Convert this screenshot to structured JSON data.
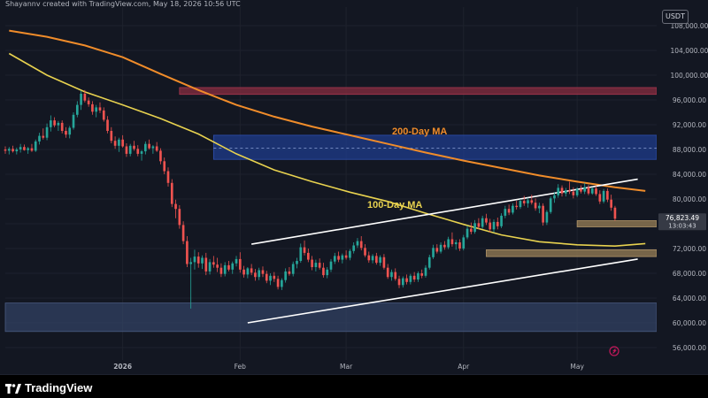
{
  "header": {
    "created_text": "Shayannv created with TradingView.com, May 18, 2026 10:56 UTC"
  },
  "currency_badge": "USDT",
  "brand": {
    "name": "TradingView"
  },
  "colors": {
    "background": "#131722",
    "up_candle": "#26a69a",
    "down_candle": "#ef5350",
    "ma200": "#f08c2a",
    "ma100": "#e8d24f",
    "channel": "#ffffff",
    "resistance_zone": "#7a2a3c",
    "blue_zone": "#1f3c8c",
    "support_zone_bottom": "#334466",
    "demand_zone": "#8a7350"
  },
  "chart_data": {
    "type": "candlestick",
    "yaxis": {
      "range": [
        54000,
        111000
      ],
      "ticks": [
        "108,000.00",
        "104,000.00",
        "100,000.00",
        "96,000.00",
        "92,000.00",
        "88,000.00",
        "84,000.00",
        "80,000.00",
        "76,000.00",
        "72,000.00",
        "68,000.00",
        "64,000.00",
        "60,000.00",
        "56,000.00"
      ],
      "tick_values": [
        108000,
        104000,
        100000,
        96000,
        92000,
        88000,
        84000,
        80000,
        76000,
        72000,
        68000,
        64000,
        60000,
        56000
      ]
    },
    "xaxis": {
      "labels": [
        "2026",
        "Feb",
        "Mar",
        "Apr",
        "May"
      ],
      "label_days": [
        0,
        31,
        59,
        90,
        120
      ]
    },
    "last_price": "76,823.49",
    "countdown": "13:03:43",
    "ma_labels": {
      "ma200": "200-Day MA",
      "ma100": "100-Day MA"
    },
    "ma200": {
      "points": [
        [
          -30,
          107200
        ],
        [
          -20,
          106200
        ],
        [
          -10,
          104800
        ],
        [
          0,
          102900
        ],
        [
          10,
          100200
        ],
        [
          20,
          97600
        ],
        [
          30,
          95200
        ],
        [
          40,
          93300
        ],
        [
          50,
          91700
        ],
        [
          60,
          90300
        ],
        [
          70,
          88900
        ],
        [
          80,
          87500
        ],
        [
          90,
          86200
        ],
        [
          100,
          85000
        ],
        [
          110,
          83800
        ],
        [
          120,
          82800
        ],
        [
          130,
          81900
        ],
        [
          138,
          81300
        ]
      ]
    },
    "ma100": {
      "points": [
        [
          -30,
          103500
        ],
        [
          -20,
          100000
        ],
        [
          -10,
          97300
        ],
        [
          0,
          95200
        ],
        [
          10,
          93000
        ],
        [
          20,
          90500
        ],
        [
          30,
          87300
        ],
        [
          40,
          84700
        ],
        [
          50,
          82800
        ],
        [
          60,
          81100
        ],
        [
          70,
          79600
        ],
        [
          80,
          77700
        ],
        [
          90,
          75900
        ],
        [
          100,
          74200
        ],
        [
          110,
          73100
        ],
        [
          120,
          72600
        ],
        [
          130,
          72400
        ],
        [
          138,
          72800
        ]
      ]
    },
    "channel": {
      "upper": [
        [
          34,
          72700
        ],
        [
          136,
          83200
        ]
      ],
      "lower": [
        [
          33,
          60000
        ],
        [
          136,
          70300
        ]
      ]
    },
    "zones": [
      {
        "name": "resistance",
        "y": [
          96900,
          98000
        ],
        "x_start": 15
      },
      {
        "name": "blue-zone",
        "y": [
          86400,
          90300
        ],
        "x_start": 24
      },
      {
        "name": "support",
        "y": [
          58600,
          63200
        ],
        "x_start": -31
      },
      {
        "name": "demand-upper",
        "y": [
          75500,
          76500
        ],
        "x_start": 120
      },
      {
        "name": "demand-lower",
        "y": [
          70700,
          71800
        ],
        "x_start": 96
      }
    ],
    "dashed_levels": [
      88200
    ],
    "candles": [
      [
        -31,
        88000,
        88500,
        87300,
        87800
      ],
      [
        -30,
        87800,
        88400,
        87200,
        88100
      ],
      [
        -29,
        88100,
        88600,
        87500,
        87700
      ],
      [
        -28,
        87700,
        88300,
        87200,
        88000
      ],
      [
        -27,
        88000,
        88900,
        87500,
        88400
      ],
      [
        -26,
        88400,
        88800,
        87800,
        87900
      ],
      [
        -25,
        87900,
        88400,
        87300,
        88200
      ],
      [
        -24,
        88200,
        88900,
        87600,
        87800
      ],
      [
        -23,
        87800,
        89600,
        87600,
        89300
      ],
      [
        -22,
        89300,
        90700,
        88800,
        90200
      ],
      [
        -21,
        90200,
        91400,
        89600,
        89900
      ],
      [
        -20,
        89900,
        92200,
        89500,
        91600
      ],
      [
        -19,
        91600,
        93500,
        90900,
        92700
      ],
      [
        -18,
        92700,
        93200,
        91600,
        91900
      ],
      [
        -17,
        91900,
        92600,
        91000,
        92300
      ],
      [
        -16,
        92300,
        92700,
        90600,
        91000
      ],
      [
        -15,
        91000,
        91600,
        89900,
        90400
      ],
      [
        -14,
        90400,
        91800,
        89800,
        91500
      ],
      [
        -13,
        91500,
        94000,
        91200,
        93600
      ],
      [
        -12,
        93600,
        95800,
        93200,
        95200
      ],
      [
        -11,
        95200,
        97500,
        94400,
        97000
      ],
      [
        -10,
        97000,
        97600,
        95600,
        95900
      ],
      [
        -9,
        95900,
        96400,
        94900,
        95300
      ],
      [
        -8,
        95300,
        95800,
        93600,
        94100
      ],
      [
        -7,
        94100,
        95200,
        93200,
        94800
      ],
      [
        -6,
        94800,
        95600,
        93900,
        94300
      ],
      [
        -5,
        94300,
        94800,
        92500,
        92800
      ],
      [
        -4,
        92800,
        93400,
        90600,
        91000
      ],
      [
        -3,
        91000,
        91600,
        89000,
        89400
      ],
      [
        -2,
        89400,
        90100,
        88100,
        88600
      ],
      [
        -1,
        88600,
        89900,
        87600,
        89600
      ],
      [
        0,
        89600,
        90300,
        88300,
        88500
      ],
      [
        1,
        88500,
        89000,
        86800,
        87300
      ],
      [
        2,
        87300,
        88900,
        86900,
        88600
      ],
      [
        3,
        88600,
        89400,
        87800,
        88100
      ],
      [
        4,
        88100,
        88700,
        86900,
        87300
      ],
      [
        5,
        87300,
        87900,
        86200,
        87700
      ],
      [
        6,
        87700,
        89300,
        87200,
        88900
      ],
      [
        7,
        88900,
        89600,
        88000,
        88200
      ],
      [
        8,
        88200,
        88700,
        87300,
        88500
      ],
      [
        9,
        88500,
        89200,
        87600,
        87800
      ],
      [
        10,
        87800,
        88200,
        85600,
        86100
      ],
      [
        11,
        86100,
        86700,
        84000,
        84500
      ],
      [
        12,
        84500,
        85100,
        82000,
        82600
      ],
      [
        13,
        82600,
        83200,
        78700,
        79200
      ],
      [
        14,
        79200,
        79900,
        76900,
        78400
      ],
      [
        15,
        78400,
        79000,
        75200,
        75800
      ],
      [
        16,
        75800,
        76400,
        72700,
        73200
      ],
      [
        17,
        73200,
        74000,
        69000,
        69500
      ],
      [
        18,
        69500,
        70500,
        62300,
        69800
      ],
      [
        19,
        69800,
        71800,
        68600,
        70700
      ],
      [
        20,
        70700,
        71400,
        68900,
        69600
      ],
      [
        21,
        69600,
        70900,
        68700,
        70500
      ],
      [
        22,
        70500,
        71300,
        67700,
        68300
      ],
      [
        23,
        68300,
        70300,
        67800,
        69800
      ],
      [
        24,
        69800,
        70800,
        68900,
        69400
      ],
      [
        25,
        69400,
        70500,
        68200,
        68900
      ],
      [
        26,
        68900,
        69600,
        67400,
        67900
      ],
      [
        27,
        67900,
        69800,
        67500,
        69300
      ],
      [
        28,
        69300,
        70000,
        68300,
        68600
      ],
      [
        29,
        68600,
        69900,
        67900,
        69600
      ],
      [
        30,
        69600,
        70800,
        69100,
        70300
      ],
      [
        31,
        70300,
        71400,
        68100,
        68600
      ],
      [
        32,
        68600,
        69200,
        67300,
        67800
      ],
      [
        33,
        67800,
        69000,
        67200,
        68800
      ],
      [
        34,
        68800,
        69500,
        67700,
        68100
      ],
      [
        35,
        68100,
        68700,
        66800,
        67400
      ],
      [
        36,
        67400,
        68900,
        66900,
        68500
      ],
      [
        37,
        68500,
        69100,
        67400,
        67900
      ],
      [
        38,
        67900,
        68400,
        66400,
        66800
      ],
      [
        39,
        66800,
        68000,
        66100,
        67600
      ],
      [
        40,
        67600,
        68200,
        66600,
        67100
      ],
      [
        41,
        67100,
        67600,
        65400,
        65800
      ],
      [
        42,
        65800,
        67200,
        65300,
        66900
      ],
      [
        43,
        66900,
        68800,
        66500,
        68300
      ],
      [
        44,
        68300,
        69000,
        67600,
        67900
      ],
      [
        45,
        67900,
        69900,
        67500,
        69500
      ],
      [
        46,
        69500,
        70500,
        68800,
        70000
      ],
      [
        47,
        70000,
        72800,
        69700,
        72200
      ],
      [
        48,
        72200,
        73300,
        70900,
        71300
      ],
      [
        49,
        71300,
        72000,
        69800,
        70200
      ],
      [
        50,
        70200,
        70800,
        68500,
        69000
      ],
      [
        51,
        69000,
        70200,
        68300,
        69700
      ],
      [
        52,
        69700,
        70400,
        68600,
        68900
      ],
      [
        53,
        68900,
        69700,
        67300,
        67700
      ],
      [
        54,
        67700,
        69000,
        67200,
        68600
      ],
      [
        55,
        68600,
        70300,
        68200,
        69900
      ],
      [
        56,
        69900,
        71300,
        69500,
        70800
      ],
      [
        57,
        70800,
        71500,
        69800,
        70200
      ],
      [
        58,
        70200,
        71200,
        69600,
        70900
      ],
      [
        59,
        70900,
        71700,
        70200,
        70500
      ],
      [
        60,
        70500,
        71900,
        70100,
        71600
      ],
      [
        61,
        71600,
        73000,
        71200,
        72500
      ],
      [
        62,
        72500,
        73700,
        72100,
        73200
      ],
      [
        63,
        73200,
        74000,
        71700,
        72100
      ],
      [
        64,
        72100,
        72700,
        70600,
        70900
      ],
      [
        65,
        70900,
        71500,
        69700,
        70100
      ],
      [
        66,
        70100,
        71100,
        69600,
        70800
      ],
      [
        67,
        70800,
        71300,
        69400,
        69700
      ],
      [
        68,
        69700,
        70900,
        69200,
        70600
      ],
      [
        69,
        70600,
        71100,
        68600,
        68900
      ],
      [
        70,
        68900,
        69500,
        67100,
        67400
      ],
      [
        71,
        67400,
        68600,
        66800,
        68200
      ],
      [
        72,
        68200,
        68800,
        66800,
        67100
      ],
      [
        73,
        67100,
        67600,
        65600,
        66100
      ],
      [
        74,
        66100,
        67500,
        65700,
        67200
      ],
      [
        75,
        67200,
        67800,
        66200,
        66600
      ],
      [
        76,
        66600,
        67900,
        66200,
        67600
      ],
      [
        77,
        67600,
        68200,
        66600,
        67000
      ],
      [
        78,
        67000,
        68300,
        66600,
        68000
      ],
      [
        79,
        68000,
        68600,
        67200,
        67600
      ],
      [
        80,
        67600,
        69300,
        67300,
        68900
      ],
      [
        81,
        68900,
        71000,
        68600,
        70600
      ],
      [
        82,
        70600,
        72600,
        70300,
        72100
      ],
      [
        83,
        72100,
        72700,
        71200,
        71500
      ],
      [
        84,
        71500,
        73000,
        71200,
        72600
      ],
      [
        85,
        72600,
        73200,
        71800,
        72200
      ],
      [
        86,
        72200,
        73900,
        71900,
        73500
      ],
      [
        87,
        73500,
        74600,
        72300,
        72700
      ],
      [
        88,
        72700,
        73400,
        71800,
        73000
      ],
      [
        89,
        73000,
        73500,
        71600,
        72000
      ],
      [
        90,
        72000,
        74200,
        71700,
        73800
      ],
      [
        91,
        73800,
        75700,
        73500,
        75200
      ],
      [
        92,
        75200,
        76200,
        74300,
        74700
      ],
      [
        93,
        74700,
        76600,
        74400,
        76100
      ],
      [
        94,
        76100,
        76900,
        75100,
        75500
      ],
      [
        95,
        75500,
        77300,
        75200,
        76900
      ],
      [
        96,
        76900,
        77600,
        75800,
        76200
      ],
      [
        97,
        76200,
        76800,
        74600,
        75100
      ],
      [
        98,
        75100,
        76700,
        74600,
        76300
      ],
      [
        99,
        76300,
        77000,
        75100,
        75600
      ],
      [
        100,
        75600,
        77700,
        75300,
        77300
      ],
      [
        101,
        77300,
        78900,
        76900,
        78400
      ],
      [
        102,
        78400,
        79100,
        77400,
        77800
      ],
      [
        103,
        77800,
        79300,
        77500,
        78900
      ],
      [
        104,
        78900,
        79700,
        78300,
        78700
      ],
      [
        105,
        78700,
        80000,
        78400,
        79700
      ],
      [
        106,
        79700,
        80500,
        78900,
        79300
      ],
      [
        107,
        79300,
        80200,
        78600,
        79800
      ],
      [
        108,
        79800,
        80700,
        79100,
        79400
      ],
      [
        109,
        79400,
        80100,
        78100,
        78500
      ],
      [
        110,
        78500,
        79400,
        77700,
        78900
      ],
      [
        111,
        78900,
        79300,
        75700,
        76200
      ],
      [
        112,
        76200,
        78200,
        75800,
        77900
      ],
      [
        113,
        77900,
        80400,
        77600,
        80100
      ],
      [
        114,
        80100,
        81100,
        79400,
        80600
      ],
      [
        115,
        80600,
        82400,
        80200,
        81800
      ],
      [
        116,
        81800,
        82200,
        80400,
        80900
      ],
      [
        117,
        80900,
        81800,
        80400,
        81400
      ],
      [
        118,
        81400,
        82800,
        80800,
        81200
      ],
      [
        119,
        81200,
        81900,
        80100,
        80600
      ],
      [
        120,
        80600,
        81900,
        80300,
        81600
      ],
      [
        121,
        81600,
        82200,
        80900,
        81200
      ],
      [
        122,
        81200,
        82600,
        80800,
        81900
      ],
      [
        123,
        81900,
        82300,
        80600,
        80900
      ],
      [
        124,
        80900,
        81900,
        80700,
        81700
      ],
      [
        125,
        81700,
        82100,
        80500,
        80800
      ],
      [
        126,
        80800,
        81400,
        79200,
        79600
      ],
      [
        127,
        79600,
        81600,
        79300,
        81300
      ],
      [
        128,
        81300,
        81700,
        79500,
        79900
      ],
      [
        129,
        79900,
        80700,
        78100,
        78600
      ],
      [
        130,
        78600,
        78900,
        76500,
        76823
      ]
    ]
  }
}
